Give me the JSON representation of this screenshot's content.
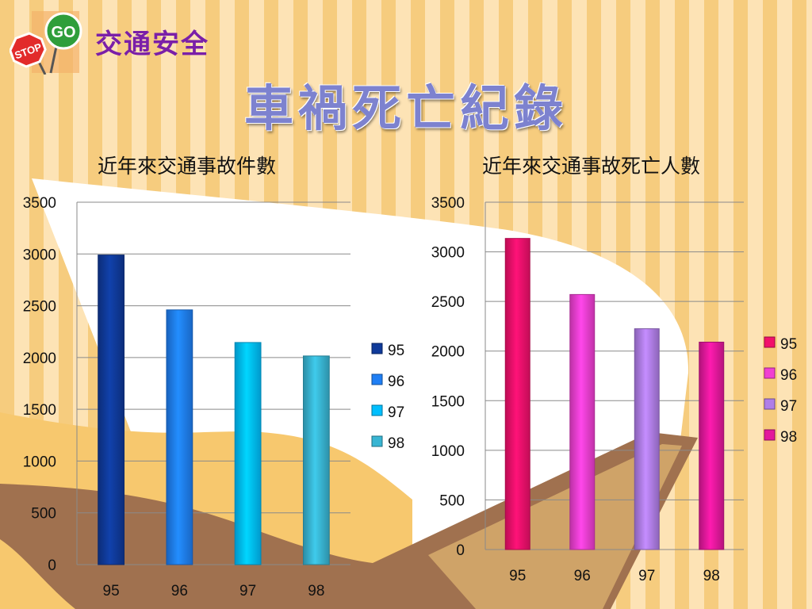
{
  "header": {
    "brand": "交通安全",
    "title": "車禍死亡紀錄",
    "logo_text": {
      "stop": "STOP",
      "go": "GO"
    }
  },
  "chart_data": [
    {
      "type": "bar",
      "title": "近年來交通事故件數",
      "categories": [
        "95",
        "96",
        "97",
        "98"
      ],
      "values": [
        2990,
        2460,
        2145,
        2015
      ],
      "ylim": [
        0,
        3500
      ],
      "yticks": [
        0,
        500,
        1000,
        1500,
        2000,
        2500,
        3000,
        3500
      ],
      "grid": true,
      "legend": {
        "position": "right",
        "entries": [
          "95",
          "96",
          "97",
          "98"
        ]
      },
      "colors": [
        "#0f3a9a",
        "#1f7ff5",
        "#00bfff",
        "#38b5d3"
      ]
    },
    {
      "type": "bar",
      "title": "近年來交通事故死亡人數",
      "categories": [
        "95",
        "96",
        "97",
        "98"
      ],
      "values": [
        3135,
        2570,
        2225,
        2090
      ],
      "ylim": [
        0,
        3500
      ],
      "yticks": [
        0,
        500,
        1000,
        1500,
        2000,
        2500,
        3000,
        3500
      ],
      "grid": true,
      "legend": {
        "position": "right",
        "entries": [
          "95",
          "96",
          "97",
          "98"
        ]
      },
      "colors": [
        "#f2106b",
        "#f13fd2",
        "#b07ee8",
        "#e3189c"
      ]
    }
  ]
}
